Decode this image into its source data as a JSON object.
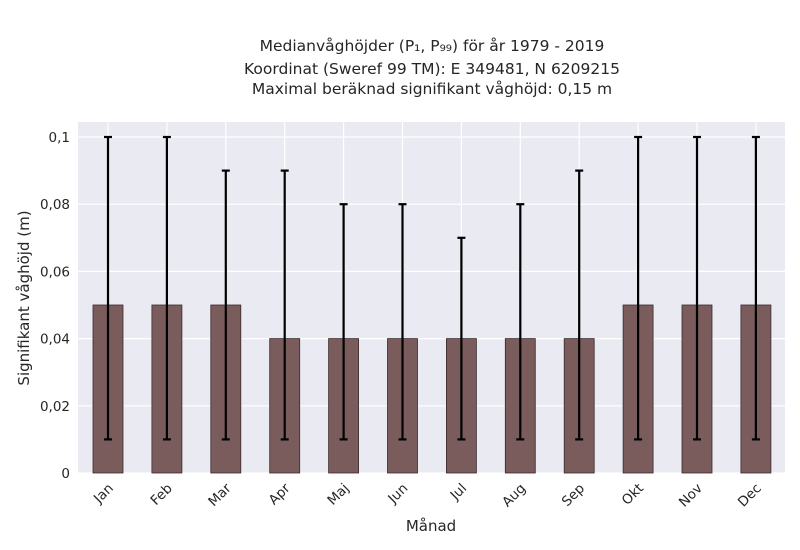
{
  "chart_data": {
    "type": "bar",
    "title_lines": [
      "Medianvåghöjder (P₁, P₉₉) för år 1979 - 2019",
      "Koordinat (Sweref 99 TM): E 349481, N 6209215",
      "Maximal beräknad signifikant våghöjd: 0,15 m"
    ],
    "xlabel": "Månad",
    "ylabel": "Signifikant våghöjd (m)",
    "categories": [
      "Jan",
      "Feb",
      "Mar",
      "Apr",
      "Maj",
      "Jun",
      "Jul",
      "Aug",
      "Sep",
      "Okt",
      "Nov",
      "Dec"
    ],
    "values": [
      0.05,
      0.05,
      0.05,
      0.04,
      0.04,
      0.04,
      0.04,
      0.04,
      0.04,
      0.05,
      0.05,
      0.05
    ],
    "error_low": [
      0.01,
      0.01,
      0.01,
      0.01,
      0.01,
      0.01,
      0.01,
      0.01,
      0.01,
      0.01,
      0.01,
      0.01
    ],
    "error_high": [
      0.1,
      0.1,
      0.09,
      0.09,
      0.08,
      0.08,
      0.07,
      0.08,
      0.09,
      0.1,
      0.1,
      0.1
    ],
    "yticks": [
      0,
      0.02,
      0.04,
      0.06,
      0.08,
      0.1
    ],
    "ytick_labels": [
      "0",
      "0,02",
      "0,04",
      "0,06",
      "0,08",
      "0,1"
    ],
    "ylim": [
      0,
      0.1
    ],
    "grid": true,
    "colors": {
      "bar": "#7b5c5c",
      "bar_edge": "#3a2a2a",
      "error_bar": "#000000",
      "plot_background": "#eaeaf2",
      "grid": "#ffffff"
    }
  }
}
